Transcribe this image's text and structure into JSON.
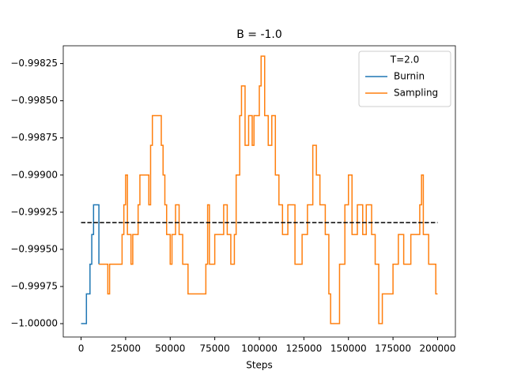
{
  "chart_data": {
    "type": "step-line",
    "title": "B = -1.0",
    "x_label": "Steps",
    "legend_title": "T=2.0",
    "legend_position": "upper right",
    "xlim": [
      -10000,
      210000
    ],
    "xticks": [
      0,
      25000,
      50000,
      75000,
      100000,
      125000,
      150000,
      175000,
      200000
    ],
    "ylim": [
      -1.00009,
      -0.99813
    ],
    "yticks": [
      {
        "value": -1.0,
        "label": "−1.00000"
      },
      {
        "value": -0.99975,
        "label": "−0.99975"
      },
      {
        "value": -0.9995,
        "label": "−0.99950"
      },
      {
        "value": -0.99925,
        "label": "−0.99925"
      },
      {
        "value": -0.999,
        "label": "−0.99900"
      },
      {
        "value": -0.99875,
        "label": "−0.99875"
      },
      {
        "value": -0.9985,
        "label": "−0.99850"
      },
      {
        "value": -0.99825,
        "label": "−0.99825"
      }
    ],
    "reference_line": {
      "y": -0.99932,
      "x": [
        0,
        200000
      ],
      "color": "#000000"
    },
    "series": [
      {
        "name": "Burnin",
        "color": "#1f77b4",
        "x": [
          0,
          3000,
          5000,
          6000,
          7000,
          10000
        ],
        "values": [
          -1.0,
          -0.9998,
          -0.9996,
          -0.9994,
          -0.9992,
          -0.9996
        ]
      },
      {
        "name": "Sampling",
        "color": "#ff7f0e",
        "x": [
          10000,
          15000,
          16000,
          23000,
          24000,
          25000,
          26000,
          28000,
          29000,
          32000,
          33000,
          38000,
          39000,
          40000,
          45000,
          46000,
          47000,
          48000,
          50000,
          51000,
          53000,
          55000,
          57000,
          60000,
          70000,
          71000,
          72000,
          75000,
          80000,
          82000,
          84000,
          86000,
          87000,
          89000,
          90000,
          92000,
          94000,
          96000,
          97000,
          100000,
          101000,
          103000,
          105000,
          107000,
          109000,
          111000,
          113000,
          116000,
          120000,
          124000,
          127000,
          130000,
          132000,
          134000,
          137000,
          139000,
          140000,
          145000,
          148000,
          150000,
          152000,
          155000,
          158000,
          160000,
          163000,
          165000,
          167000,
          169000,
          175000,
          178000,
          181000,
          185000,
          190000,
          191000,
          192000,
          195000,
          199000,
          200000
        ],
        "values": [
          -0.9996,
          -0.9998,
          -0.9996,
          -0.9994,
          -0.9992,
          -0.999,
          -0.9994,
          -0.9996,
          -0.9994,
          -0.9992,
          -0.999,
          -0.9992,
          -0.9988,
          -0.9986,
          -0.9988,
          -0.999,
          -0.9992,
          -0.9994,
          -0.9996,
          -0.9994,
          -0.9992,
          -0.9994,
          -0.9996,
          -0.9998,
          -0.9996,
          -0.9992,
          -0.9996,
          -0.9994,
          -0.9992,
          -0.9994,
          -0.9996,
          -0.9994,
          -0.999,
          -0.9986,
          -0.9984,
          -0.9988,
          -0.9986,
          -0.9988,
          -0.9986,
          -0.9984,
          -0.9982,
          -0.9986,
          -0.9988,
          -0.9986,
          -0.999,
          -0.9992,
          -0.9994,
          -0.9992,
          -0.9996,
          -0.9994,
          -0.9992,
          -0.9988,
          -0.999,
          -0.9992,
          -0.9994,
          -0.9998,
          -1.0,
          -0.9996,
          -0.9992,
          -0.999,
          -0.9994,
          -0.9992,
          -0.9994,
          -0.9992,
          -0.9994,
          -0.9996,
          -1.0,
          -0.9998,
          -0.9996,
          -0.9994,
          -0.9996,
          -0.9994,
          -0.9992,
          -0.999,
          -0.9994,
          -0.9996,
          -0.9998,
          -0.9998
        ]
      }
    ]
  }
}
